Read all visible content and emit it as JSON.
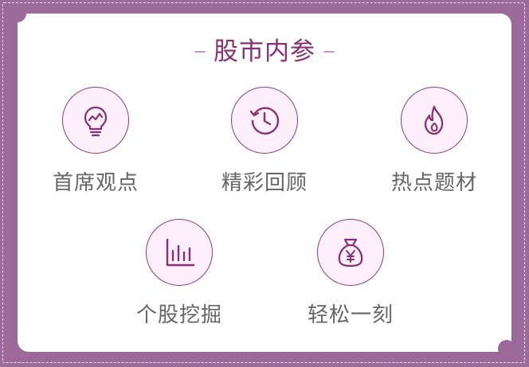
{
  "title": "股市内参",
  "colors": {
    "frame": "#9c6a98",
    "accent": "#8a2f73",
    "circle_fill": "#fdeffb",
    "label": "#666666"
  },
  "items": [
    {
      "label": "首席观点",
      "icon": "lightbulb-chart-icon"
    },
    {
      "label": "精彩回顾",
      "icon": "history-clock-icon"
    },
    {
      "label": "热点题材",
      "icon": "flame-icon"
    },
    {
      "label": "个股挖掘",
      "icon": "bar-chart-icon"
    },
    {
      "label": "轻松一刻",
      "icon": "money-bag-icon"
    }
  ]
}
